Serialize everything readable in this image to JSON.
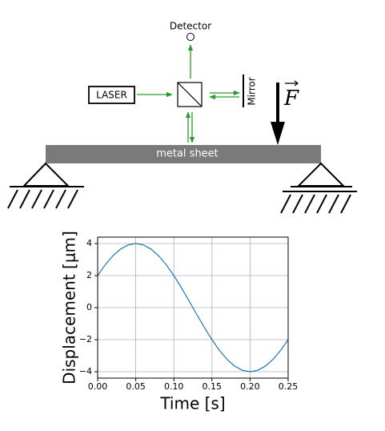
{
  "diagram": {
    "detector_label": "Detector",
    "laser_label": "LASER",
    "mirror_label": "Mirror",
    "force_label": "F",
    "sheet_label": "metal sheet"
  },
  "chart_data": {
    "type": "line",
    "x_label": "Time [s]",
    "y_label": "Displacement [μm]",
    "x": [
      0,
      0.01,
      0.02,
      0.03,
      0.04,
      0.05,
      0.06,
      0.07,
      0.08,
      0.09,
      0.1,
      0.11,
      0.12,
      0.13,
      0.14,
      0.15,
      0.16,
      0.17,
      0.18,
      0.19,
      0.2,
      0.21,
      0.22,
      0.23,
      0.24,
      0.25
    ],
    "series": [
      {
        "color": "#1f77b4",
        "values": [
          2.0,
          2.677,
          3.236,
          3.654,
          3.913,
          4.0,
          3.913,
          3.654,
          3.236,
          2.677,
          2.0,
          1.236,
          0.418,
          -0.418,
          -1.236,
          -2.0,
          -2.677,
          -3.236,
          -3.654,
          -3.913,
          -4.0,
          -3.913,
          -3.654,
          -3.236,
          -2.677,
          -2.0
        ]
      }
    ],
    "xlim": [
      0,
      0.25
    ],
    "ylim": [
      -4.4,
      4.4
    ],
    "xticks": [
      {
        "value": 0,
        "label": "0.00"
      },
      0.05,
      {
        "value": 0.1,
        "label": "0.10"
      },
      0.15,
      {
        "value": 0.2,
        "label": "0.20"
      },
      0.25
    ],
    "yticks": [
      {
        "value": -4,
        "label": "−4"
      },
      {
        "value": -2,
        "label": "−2"
      },
      0,
      2,
      4
    ],
    "grid": true
  }
}
